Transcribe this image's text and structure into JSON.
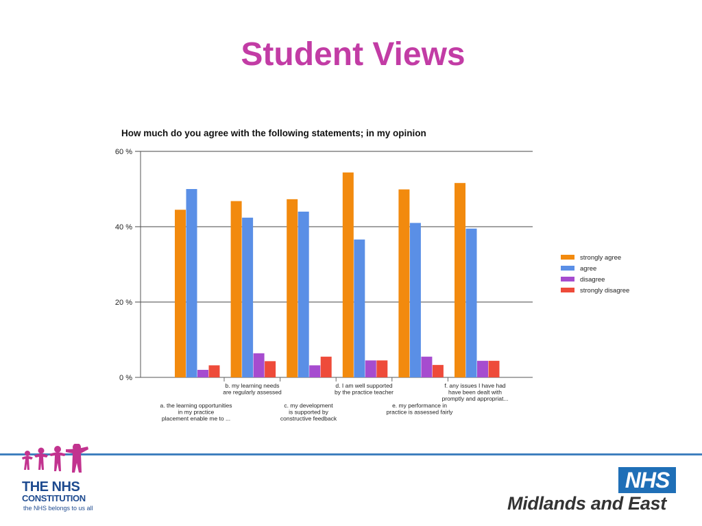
{
  "slide": {
    "title": "Student Views"
  },
  "chart_data": {
    "type": "bar",
    "title": "How much do you agree with the following statements; in my opinion",
    "xlabel": "",
    "ylabel": "",
    "ylim": [
      0,
      60
    ],
    "y_ticks": [
      0,
      20,
      40,
      60
    ],
    "y_tick_labels": [
      "0 %",
      "20 %",
      "40 %",
      "60 %"
    ],
    "grid": true,
    "legend_position": "right",
    "categories": [
      [
        "a. the learning opportunities",
        "in my practice",
        "placement  enable me to ..."
      ],
      [
        "b. my learning needs",
        "are regularly assessed"
      ],
      [
        "c. my development",
        "is supported by",
        "constructive feedback"
      ],
      [
        "d. I am well supported",
        "by the practice teacher"
      ],
      [
        "e. my performance in",
        "practice is assessed fairly"
      ],
      [
        "f. any issues I have had",
        "have been dealt with",
        "promptly and appropriat..."
      ]
    ],
    "series": [
      {
        "name": "strongly agree",
        "color": "#f28a0e",
        "values": [
          44.5,
          46.8,
          47.3,
          54.4,
          49.9,
          51.6
        ]
      },
      {
        "name": "agree",
        "color": "#5a8fe6",
        "values": [
          50.0,
          42.4,
          44.0,
          36.6,
          41.0,
          39.5
        ]
      },
      {
        "name": "disagree",
        "color": "#a64ccf",
        "values": [
          2.0,
          6.4,
          3.2,
          4.5,
          5.5,
          4.4
        ]
      },
      {
        "name": "strongly disagree",
        "color": "#ee4b3a",
        "values": [
          3.2,
          4.3,
          5.5,
          4.5,
          3.3,
          4.4
        ]
      }
    ]
  },
  "footer": {
    "constitution_line1": "THE NHS",
    "constitution_line2": "CONSTITUTION",
    "constitution_tagline": "the NHS belongs to us all",
    "nhs_badge": "NHS",
    "region": "Midlands and East",
    "rule_color": "#3f7fbe"
  }
}
